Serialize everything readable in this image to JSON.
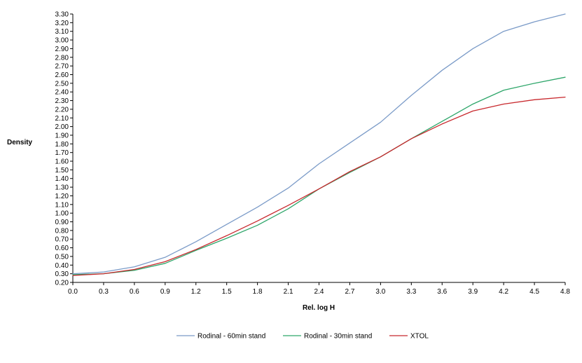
{
  "chart_data": {
    "type": "line",
    "title": "",
    "xlabel": "Rel. log H",
    "ylabel": "Density",
    "x": [
      0.0,
      0.3,
      0.6,
      0.9,
      1.2,
      1.5,
      1.8,
      2.1,
      2.4,
      2.7,
      3.0,
      3.3,
      3.6,
      3.9,
      4.2,
      4.5,
      4.8
    ],
    "x_tick_labels": [
      "0.0",
      "0.3",
      "0.6",
      "0.9",
      "1.2",
      "1.5",
      "1.8",
      "2.1",
      "2.4",
      "2.7",
      "3.0",
      "3.3",
      "3.6",
      "3.9",
      "4.2",
      "4.5",
      "4.8"
    ],
    "xlim": [
      0.0,
      4.8
    ],
    "ylim": [
      0.2,
      3.3
    ],
    "y_tick_labels": [
      "0.20",
      "0.30",
      "0.40",
      "0.50",
      "0.60",
      "0.70",
      "0.80",
      "0.90",
      "1.00",
      "1.10",
      "1.20",
      "1.30",
      "1.40",
      "1.50",
      "1.60",
      "1.70",
      "1.80",
      "1.90",
      "2.00",
      "2.10",
      "2.20",
      "2.30",
      "2.40",
      "2.50",
      "2.60",
      "2.70",
      "2.80",
      "2.90",
      "3.00",
      "3.10",
      "3.20",
      "3.30"
    ],
    "grid": false,
    "legend_position": "bottom-center",
    "series": [
      {
        "name": "Rodinal - 60min stand",
        "color": "#7b9bc8",
        "values": [
          0.3,
          0.32,
          0.38,
          0.49,
          0.67,
          0.87,
          1.07,
          1.29,
          1.57,
          1.81,
          2.05,
          2.36,
          2.65,
          2.9,
          3.1,
          3.21,
          3.3
        ]
      },
      {
        "name": "Rodinal - 30min stand",
        "color": "#2ea66a",
        "values": [
          0.29,
          0.3,
          0.34,
          0.42,
          0.57,
          0.71,
          0.86,
          1.05,
          1.28,
          1.47,
          1.65,
          1.86,
          2.06,
          2.26,
          2.42,
          2.5,
          2.57
        ]
      },
      {
        "name": "XTOL",
        "color": "#c8282d",
        "values": [
          0.28,
          0.3,
          0.35,
          0.44,
          0.58,
          0.74,
          0.91,
          1.09,
          1.28,
          1.48,
          1.65,
          1.86,
          2.03,
          2.18,
          2.26,
          2.31,
          2.34
        ]
      }
    ]
  }
}
